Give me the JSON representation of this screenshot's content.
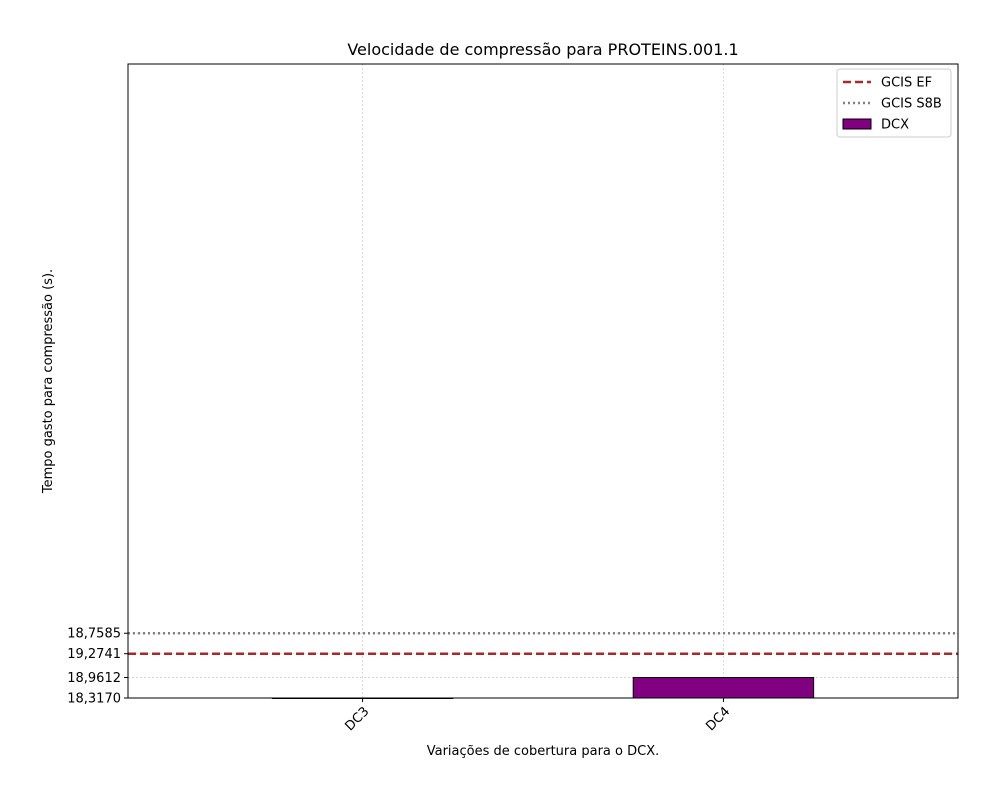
{
  "chart_data": {
    "type": "bar",
    "title": "Velocidade de compressão para  PROTEINS.001.1",
    "xlabel": "Variações de cobertura para o DCX.",
    "ylabel": "Tempo gasto para compressão (s).",
    "categories": [
      "DC3",
      "DC4"
    ],
    "series": [
      {
        "name": "DCX",
        "values": [
          0.0,
          0.3
        ],
        "color": "#800080"
      }
    ],
    "reference_lines": [
      {
        "name": "GCIS EF",
        "value": 0.65,
        "color": "#a52a2a",
        "style": "dashed"
      },
      {
        "name": "GCIS S8B",
        "value": 0.95,
        "color": "#808080",
        "style": "dotted"
      }
    ],
    "yticks": [
      {
        "value": 0.0,
        "label": "18,3170"
      },
      {
        "value": 0.3,
        "label": "18,9612"
      },
      {
        "value": 0.65,
        "label": "19,2741"
      },
      {
        "value": 0.95,
        "label": "18,7585"
      }
    ],
    "ylim": [
      0,
      9.3
    ],
    "grid": true,
    "legend_position": "top-right",
    "legend_entries": [
      "GCIS EF",
      "GCIS S8B",
      "DCX"
    ]
  }
}
